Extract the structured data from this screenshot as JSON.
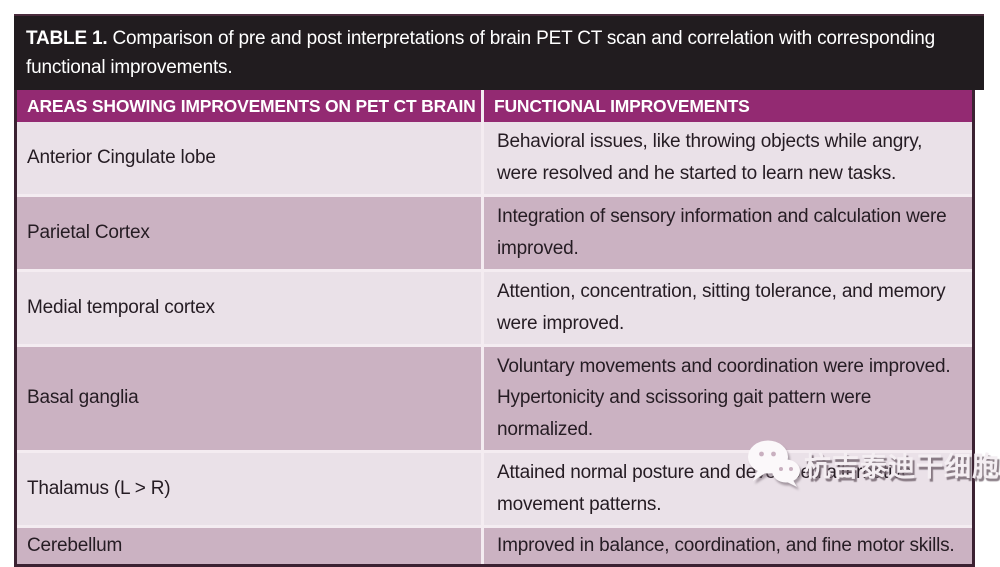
{
  "table": {
    "title_label": "TABLE 1.",
    "title_text": "Comparison of pre and post interpretations of brain PET CT scan and correlation with corresponding functional improvements.",
    "columns": [
      "AREAS SHOWING IMPROVEMENTS ON PET CT BRAIN",
      "FUNCTIONAL IMPROVEMENTS"
    ],
    "rows": [
      {
        "area": "Anterior Cingulate lobe",
        "improvement": "Behavioral issues, like throwing objects while angry, were resolved and he started to learn new tasks."
      },
      {
        "area": "Parietal Cortex",
        "improvement": "Integration of sensory information and calculation were improved."
      },
      {
        "area": "Medial temporal cortex",
        "improvement": "Attention, concentration, sitting tolerance, and memory were improved."
      },
      {
        "area": "Basal ganglia",
        "improvement": "Voluntary movements and coordination were improved. Hypertonicity and scissoring gait pattern were normalized."
      },
      {
        "area": "Thalamus (L > R)",
        "improvement": "Attained normal posture and developed alternative movement patterns."
      },
      {
        "area": "Cerebellum",
        "improvement": "Improved in balance, coordination, and fine motor skills."
      }
    ]
  },
  "watermark": {
    "icon": "wechat-icon",
    "text": "杭吉泰迪干细胞"
  },
  "colors": {
    "title_bar_bg": "#211c1f",
    "header_bg": "#932a72",
    "row_light": "#EAE1E8",
    "row_dark": "#CBB2C2",
    "outer_border": "#3b2232",
    "separator": "#F4ECF1",
    "body_text": "#251c23"
  }
}
